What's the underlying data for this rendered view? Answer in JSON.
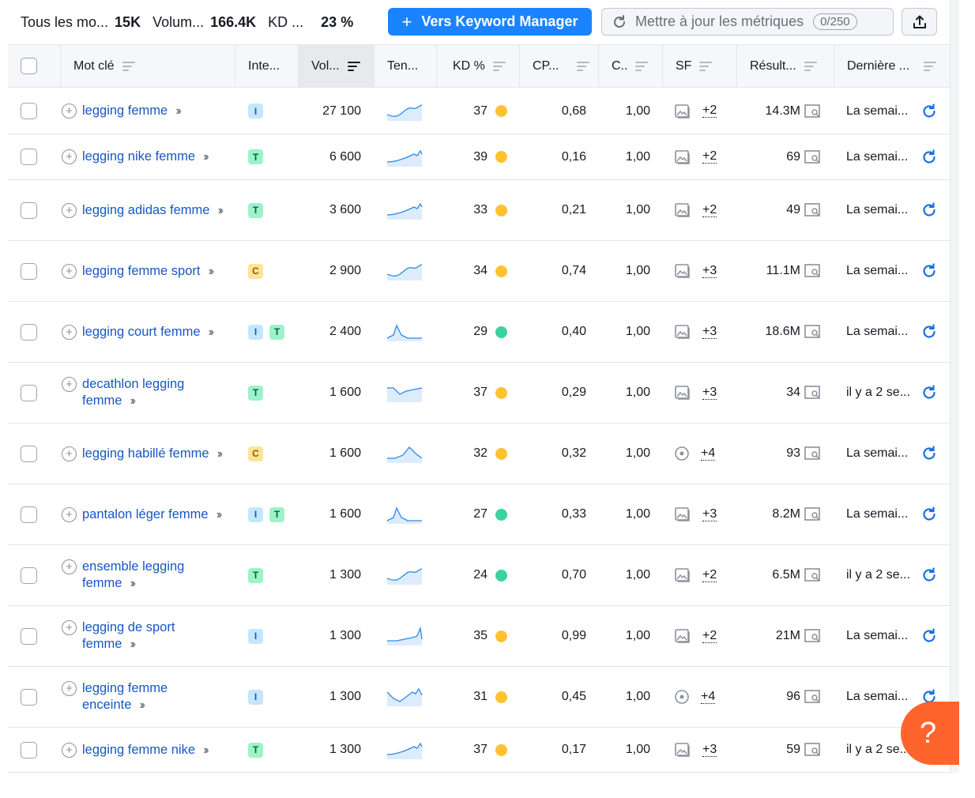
{
  "toolbar": {
    "stats": [
      {
        "label": "Tous les mo...",
        "value": "15K"
      },
      {
        "label": "Volum...",
        "value": "166.4K"
      },
      {
        "label": "KD ...",
        "value": "23 %"
      }
    ],
    "keyword_manager_label": "Vers Keyword Manager",
    "update_metrics_label": "Mettre à jour les métriques",
    "update_counter": "0/250"
  },
  "columns": {
    "keyword": "Mot clé",
    "intent": "Inte...",
    "volume": "Vol...",
    "trend": "Ten...",
    "kd": "KD %",
    "cpc": "CP...",
    "competition": "C..",
    "sf": "SF",
    "results": "Résult...",
    "last_update": "Dernière ..."
  },
  "colors": {
    "primary": "#1a84ff",
    "link": "#1757c2",
    "kd_yellow": "#ffc22e",
    "kd_green": "#3ad29f",
    "help": "#ff642d"
  },
  "rows": [
    {
      "keyword": "legging femme",
      "intents": [
        "I"
      ],
      "volume": "27 100",
      "trend": "wave-up",
      "kd": "37",
      "kd_color": "#ffc22e",
      "cpc": "0,68",
      "com": "1,00",
      "sf_icon": "image-icon",
      "sf_more": "+2",
      "results": "14.3M",
      "last": "La semai..."
    },
    {
      "keyword": "legging nike femme",
      "intents": [
        "T"
      ],
      "volume": "6 600",
      "trend": "rise",
      "kd": "39",
      "kd_color": "#ffc22e",
      "cpc": "0,16",
      "com": "1,00",
      "sf_icon": "image-icon",
      "sf_more": "+2",
      "results": "69",
      "last": "La semai..."
    },
    {
      "keyword": "legging adidas femme",
      "intents": [
        "T"
      ],
      "volume": "3 600",
      "trend": "rise",
      "kd": "33",
      "kd_color": "#ffc22e",
      "cpc": "0,21",
      "com": "1,00",
      "sf_icon": "image-icon",
      "sf_more": "+2",
      "results": "49",
      "last": "La semai..."
    },
    {
      "keyword": "legging femme sport",
      "intents": [
        "C"
      ],
      "volume": "2 900",
      "trend": "wave-up",
      "kd": "34",
      "kd_color": "#ffc22e",
      "cpc": "0,74",
      "com": "1,00",
      "sf_icon": "image-icon",
      "sf_more": "+3",
      "results": "11.1M",
      "last": "La semai..."
    },
    {
      "keyword": "legging court femme",
      "intents": [
        "I",
        "T"
      ],
      "volume": "2 400",
      "trend": "spike",
      "kd": "29",
      "kd_color": "#3ad29f",
      "cpc": "0,40",
      "com": "1,00",
      "sf_icon": "image-icon",
      "sf_more": "+3",
      "results": "18.6M",
      "last": "La semai..."
    },
    {
      "keyword": "decathlon legging femme",
      "intents": [
        "T"
      ],
      "volume": "1 600",
      "trend": "valley",
      "kd": "37",
      "kd_color": "#ffc22e",
      "cpc": "0,29",
      "com": "1,00",
      "sf_icon": "image-icon",
      "sf_more": "+3",
      "results": "34",
      "last": "il y a 2 se..."
    },
    {
      "keyword": "legging habillé femme",
      "intents": [
        "C"
      ],
      "volume": "1 600",
      "trend": "hill",
      "kd": "32",
      "kd_color": "#ffc22e",
      "cpc": "0,32",
      "com": "1,00",
      "sf_icon": "location-icon",
      "sf_more": "+4",
      "results": "93",
      "last": "La semai..."
    },
    {
      "keyword": "pantalon léger femme",
      "intents": [
        "I",
        "T"
      ],
      "volume": "1 600",
      "trend": "spike",
      "kd": "27",
      "kd_color": "#3ad29f",
      "cpc": "0,33",
      "com": "1,00",
      "sf_icon": "image-icon",
      "sf_more": "+3",
      "results": "8.2M",
      "last": "La semai..."
    },
    {
      "keyword": "ensemble legging femme",
      "intents": [
        "T"
      ],
      "volume": "1 300",
      "trend": "wave-up",
      "kd": "24",
      "kd_color": "#3ad29f",
      "cpc": "0,70",
      "com": "1,00",
      "sf_icon": "image-icon",
      "sf_more": "+2",
      "results": "6.5M",
      "last": "il y a 2 se..."
    },
    {
      "keyword": "legging de sport femme",
      "intents": [
        "I"
      ],
      "volume": "1 300",
      "trend": "jump",
      "kd": "35",
      "kd_color": "#ffc22e",
      "cpc": "0,99",
      "com": "1,00",
      "sf_icon": "image-icon",
      "sf_more": "+2",
      "results": "21M",
      "last": "La semai..."
    },
    {
      "keyword": "legging femme enceinte",
      "intents": [
        "I"
      ],
      "volume": "1 300",
      "trend": "zigzag",
      "kd": "31",
      "kd_color": "#ffc22e",
      "cpc": "0,45",
      "com": "1,00",
      "sf_icon": "location-icon",
      "sf_more": "+4",
      "results": "96",
      "last": "La semai..."
    },
    {
      "keyword": "legging femme nike",
      "intents": [
        "T"
      ],
      "volume": "1 300",
      "trend": "rise",
      "kd": "37",
      "kd_color": "#ffc22e",
      "cpc": "0,17",
      "com": "1,00",
      "sf_icon": "image-icon",
      "sf_more": "+3",
      "results": "59",
      "last": "il y a 2 se..."
    }
  ],
  "help_label": "?"
}
